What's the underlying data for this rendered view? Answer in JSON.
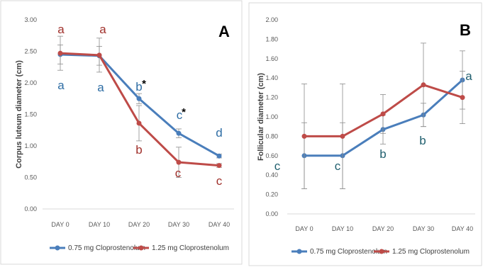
{
  "colors": {
    "series1": "#4a7ebb",
    "series2": "#be4b48",
    "letterA": "#a0302b",
    "letterB": "#2e6da4",
    "letterB2": "#1f5f6e"
  },
  "chart_data": [
    {
      "type": "line",
      "panel_label": "A",
      "ylabel": "Corpus luteum diameter (cm)",
      "xlabel": "",
      "categories": [
        "DAY 0",
        "DAY 10",
        "DAY 20",
        "DAY 30",
        "DAY 40"
      ],
      "ylim": [
        0,
        3
      ],
      "yticks": [
        "0.00",
        "0.50",
        "1.00",
        "1.50",
        "2.00",
        "2.50",
        "3.00"
      ],
      "grid": false,
      "legend": "bottom",
      "series": [
        {
          "name": "0.75 mg Cloprostenolum",
          "values": [
            2.45,
            2.43,
            1.75,
            1.2,
            0.84
          ],
          "error": [
            0.15,
            0.15,
            0.08,
            0.07,
            0.03
          ],
          "letters": [
            "a",
            "a",
            "b",
            "c",
            "d"
          ],
          "asterisks": [
            "",
            "",
            "*",
            "*",
            ""
          ]
        },
        {
          "name": "1.25 mg Cloprostenolum",
          "values": [
            2.47,
            2.44,
            1.36,
            0.74,
            0.69
          ],
          "error": [
            0.27,
            0.27,
            0.28,
            0.24,
            0.03
          ],
          "letters": [
            "a",
            "a",
            "b",
            "c",
            "c"
          ]
        }
      ]
    },
    {
      "type": "line",
      "panel_label": "B",
      "ylabel": "Follicular diameter (cm)",
      "xlabel": "",
      "categories": [
        "DAY 0",
        "DAY 10",
        "DAY 20",
        "DAY 30",
        "DAY 40"
      ],
      "ylim": [
        0,
        2
      ],
      "yticks": [
        "0.00",
        "0.20",
        "0.40",
        "0.60",
        "0.80",
        "1.00",
        "1.20",
        "1.40",
        "1.60",
        "1.80",
        "2.00"
      ],
      "grid": false,
      "legend": "bottom",
      "series": [
        {
          "name": "0.75 mg Cloprostenolum",
          "values": [
            0.6,
            0.6,
            0.87,
            1.02,
            1.38
          ],
          "error": [
            0.34,
            0.34,
            0.15,
            0.12,
            0.3
          ],
          "letters": [
            "c",
            "c",
            "b",
            "b",
            "a"
          ]
        },
        {
          "name": "1.25 mg Cloprostenolum",
          "values": [
            0.8,
            0.8,
            1.03,
            1.33,
            1.2
          ],
          "error": [
            0.54,
            0.54,
            0.2,
            0.43,
            0.27
          ],
          "letters": []
        }
      ]
    }
  ]
}
